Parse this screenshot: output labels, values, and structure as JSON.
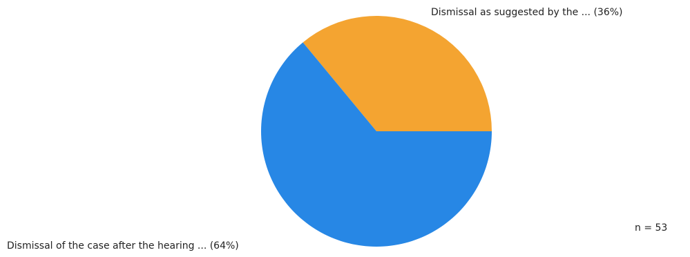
{
  "chart_data": {
    "type": "pie",
    "slices": [
      {
        "label": "Dismissal as suggested by the ... (36%)",
        "value": 36,
        "color": "#f4a431"
      },
      {
        "label": "Dismissal of the case after the hearing ... (64%)",
        "value": 64,
        "color": "#2787e5"
      }
    ],
    "note": "n = 53"
  }
}
